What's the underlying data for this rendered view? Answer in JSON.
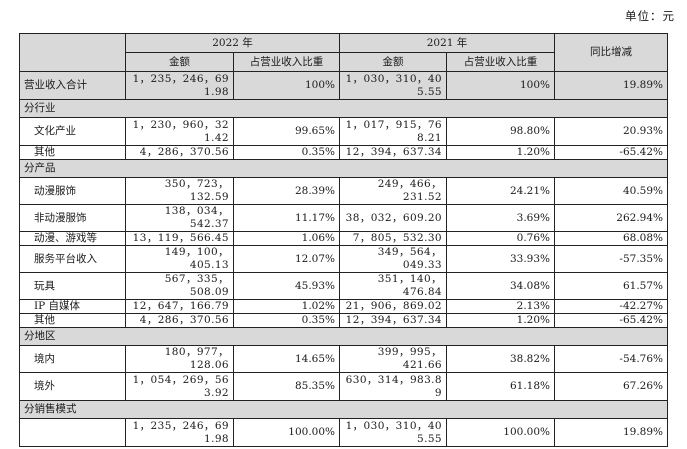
{
  "unit": "单位：元",
  "header": {
    "year2022": "2022 年",
    "year2021": "2021 年",
    "yoy": "同比增减",
    "amount": "金额",
    "ratio": "占营业收入比重"
  },
  "total": {
    "label": "营业收入合计",
    "amt2022": "1，235，246，691.98",
    "ratio2022": "100%",
    "amt2021": "1，030，310，405.55",
    "ratio2021": "100%",
    "yoy": "19.89%"
  },
  "industry": {
    "title": "分行业",
    "rows": [
      {
        "label": "文化产业",
        "amt2022": "1，230，960，321.42",
        "ratio2022": "99.65%",
        "amt2021": "1，017，915，768.21",
        "ratio2021": "98.80%",
        "yoy": "20.93%"
      },
      {
        "label": "其他",
        "amt2022": "4，286，370.56",
        "ratio2022": "0.35%",
        "amt2021": "12，394，637.34",
        "ratio2021": "1.20%",
        "yoy": "-65.42%"
      }
    ]
  },
  "product": {
    "title": "分产品",
    "rows": [
      {
        "label": "动漫服饰",
        "amt2022": "350，723，132.59",
        "ratio2022": "28.39%",
        "amt2021": "249，466，231.52",
        "ratio2021": "24.21%",
        "yoy": "40.59%"
      },
      {
        "label": "非动漫服饰",
        "amt2022": "138，034，542.37",
        "ratio2022": "11.17%",
        "amt2021": "38，032，609.20",
        "ratio2021": "3.69%",
        "yoy": "262.94%"
      },
      {
        "label": "动漫、游戏等",
        "amt2022": "13，119，566.45",
        "ratio2022": "1.06%",
        "amt2021": "7，805，532.30",
        "ratio2021": "0.76%",
        "yoy": "68.08%"
      },
      {
        "label": "服务平台收入",
        "amt2022": "149，100，405.13",
        "ratio2022": "12.07%",
        "amt2021": "349，564，049.33",
        "ratio2021": "33.93%",
        "yoy": "-57.35%"
      },
      {
        "label": "玩具",
        "amt2022": "567，335，508.09",
        "ratio2022": "45.93%",
        "amt2021": "351，140，476.84",
        "ratio2021": "34.08%",
        "yoy": "61.57%"
      },
      {
        "label": "IP 自媒体",
        "amt2022": "12，647，166.79",
        "ratio2022": "1.02%",
        "amt2021": "21，906，869.02",
        "ratio2021": "2.13%",
        "yoy": "-42.27%"
      },
      {
        "label": "其他",
        "amt2022": "4，286，370.56",
        "ratio2022": "0.35%",
        "amt2021": "12，394，637.34",
        "ratio2021": "1.20%",
        "yoy": "-65.42%"
      }
    ]
  },
  "region": {
    "title": "分地区",
    "rows": [
      {
        "label": "境内",
        "amt2022": "180，977，128.06",
        "ratio2022": "14.65%",
        "amt2021": "399，995，421.66",
        "ratio2021": "38.82%",
        "yoy": "-54.76%"
      },
      {
        "label": "境外",
        "amt2022": "1，054，269，563.92",
        "ratio2022": "85.35%",
        "amt2021": "630，314，983.89",
        "ratio2021": "61.18%",
        "yoy": "67.26%"
      }
    ]
  },
  "sales": {
    "title": "分销售模式",
    "rows": [
      {
        "label": "",
        "amt2022": "1，235，246，691.98",
        "ratio2022": "100.00%",
        "amt2021": "1，030，310，405.55",
        "ratio2021": "100.00%",
        "yoy": "19.89%"
      }
    ]
  }
}
